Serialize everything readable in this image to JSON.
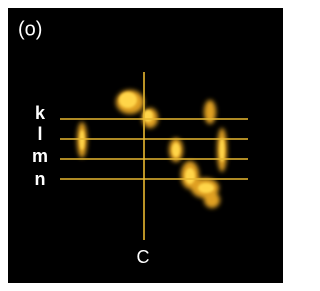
{
  "panel_label": "(o)",
  "line_labels": [
    "k",
    "l",
    "m",
    "n"
  ],
  "axis_label": "C"
}
